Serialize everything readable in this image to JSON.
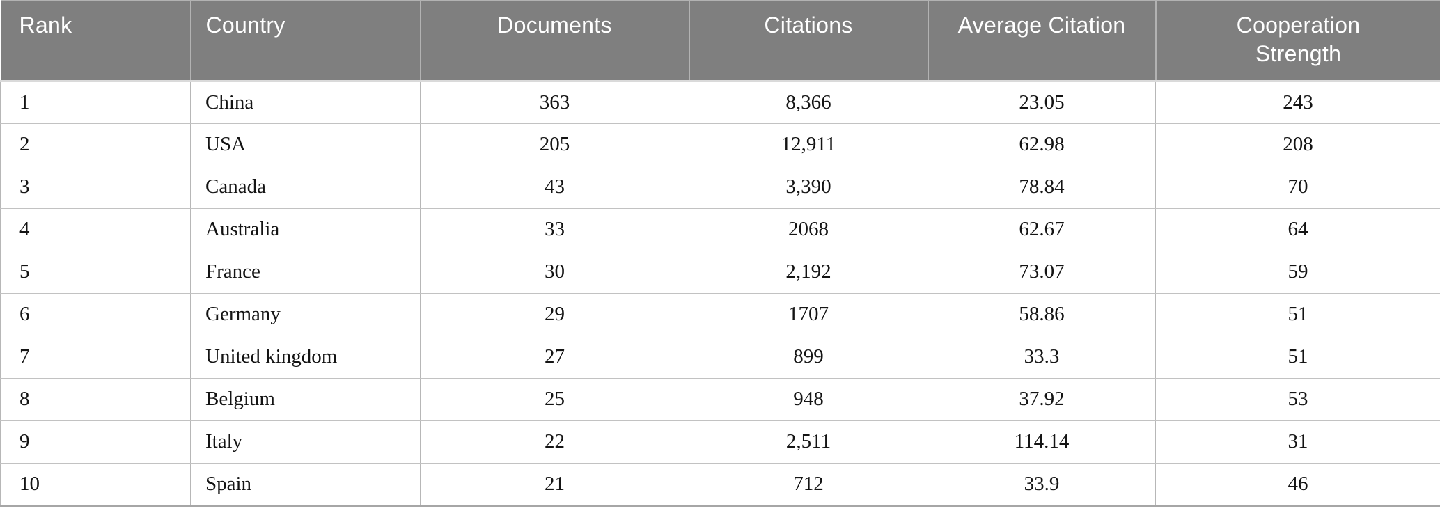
{
  "table": {
    "columns": [
      {
        "key": "rank",
        "label": "Rank",
        "align": "left"
      },
      {
        "key": "country",
        "label": "Country",
        "align": "left"
      },
      {
        "key": "documents",
        "label": "Documents",
        "align": "center"
      },
      {
        "key": "citations",
        "label": "Citations",
        "align": "center"
      },
      {
        "key": "average-citation",
        "label": "Average Citation",
        "align": "center"
      },
      {
        "key": "cooperation-strength",
        "label": "Cooperation Strength",
        "align": "center"
      }
    ],
    "rows": [
      [
        "1",
        "China",
        "363",
        "8,366",
        "23.05",
        "243"
      ],
      [
        "2",
        "USA",
        "205",
        "12,911",
        "62.98",
        "208"
      ],
      [
        "3",
        "Canada",
        "43",
        "3,390",
        "78.84",
        "70"
      ],
      [
        "4",
        "Australia",
        "33",
        "2068",
        "62.67",
        "64"
      ],
      [
        "5",
        "France",
        "30",
        "2,192",
        "73.07",
        "59"
      ],
      [
        "6",
        "Germany",
        "29",
        "1707",
        "58.86",
        "51"
      ],
      [
        "7",
        "United kingdom",
        "27",
        "899",
        "33.3",
        "51"
      ],
      [
        "8",
        "Belgium",
        "25",
        "948",
        "37.92",
        "53"
      ],
      [
        "9",
        "Italy",
        "22",
        "2,511",
        "114.14",
        "31"
      ],
      [
        "10",
        "Spain",
        "21",
        "712",
        "33.9",
        "46"
      ]
    ]
  },
  "chart_data": {
    "type": "table",
    "columns": [
      "Rank",
      "Country",
      "Documents",
      "Citations",
      "Average Citation",
      "Cooperation Strength"
    ],
    "rows": [
      [
        1,
        "China",
        363,
        8366,
        23.05,
        243
      ],
      [
        2,
        "USA",
        205,
        12911,
        62.98,
        208
      ],
      [
        3,
        "Canada",
        43,
        3390,
        78.84,
        70
      ],
      [
        4,
        "Australia",
        33,
        2068,
        62.67,
        64
      ],
      [
        5,
        "France",
        30,
        2192,
        73.07,
        59
      ],
      [
        6,
        "Germany",
        29,
        1707,
        58.86,
        51
      ],
      [
        7,
        "United kingdom",
        27,
        899,
        33.3,
        51
      ],
      [
        8,
        "Belgium",
        25,
        948,
        37.92,
        53
      ],
      [
        9,
        "Italy",
        22,
        2511,
        114.14,
        31
      ],
      [
        10,
        "Spain",
        21,
        712,
        33.9,
        46
      ]
    ]
  },
  "colors": {
    "header_bg": "#7f7f7f",
    "header_text": "#ffffff",
    "header_divider": "#b2b2b2",
    "header_gap": "#dadada",
    "grid": "#b7b7b7",
    "row_line": "#c2c2c2",
    "bottom_border": "#a6a6a6",
    "body_text": "#141414",
    "page_bg": "#ffffff"
  }
}
